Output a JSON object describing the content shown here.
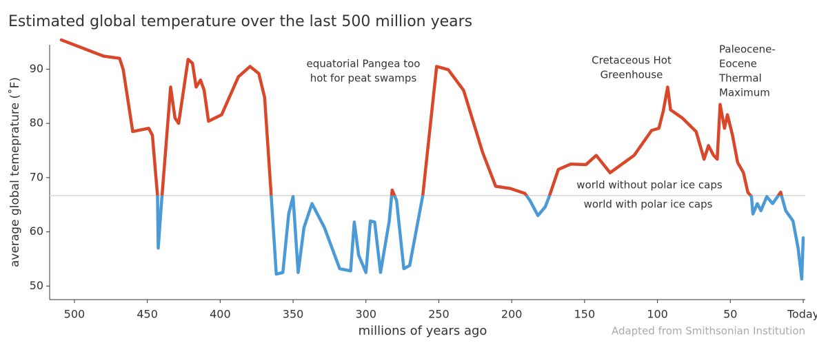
{
  "chart_data": {
    "type": "line",
    "title": "Estimated global temperature over the last 500 million years",
    "x_label": "millions of years ago",
    "y_label": "average global temeprature (˚F)",
    "source": "Adapted from Smithsonian Institution",
    "xlim": [
      517,
      0
    ],
    "ylim": [
      47.5,
      94.5
    ],
    "xticks": [
      500,
      450,
      400,
      350,
      300,
      250,
      200,
      150,
      100,
      50,
      {
        "value": 0,
        "label": "Today"
      }
    ],
    "yticks": [
      50,
      60,
      70,
      80,
      90
    ],
    "threshold": 66.7,
    "colors": {
      "above": "#d9472b",
      "below": "#4a9ad8",
      "threshold": "#d6d6d6"
    },
    "annotations": [
      {
        "lines": [
          "equatorial Pangea too",
          "hot for peat swamps"
        ]
      },
      {
        "lines": [
          "Cretaceous Hot",
          "Greenhouse"
        ]
      },
      {
        "lines": [
          "Paleocene-",
          "Eocene",
          "Thermal",
          "Maximum"
        ]
      },
      {
        "lines": [
          "world without polar ice caps"
        ]
      },
      {
        "lines": [
          "world with polar ice caps"
        ]
      }
    ],
    "series": [
      {
        "name": "temperature",
        "x": [
          509,
          480,
          469,
          466.5,
          460,
          449,
          446.5,
          443,
          442.5,
          440.5,
          434,
          431,
          428.5,
          422,
          419,
          416.5,
          413.5,
          411,
          408,
          399,
          387.5,
          379.5,
          373.5,
          369.5,
          365,
          361.5,
          357,
          353,
          350,
          346.5,
          342.5,
          337,
          328.5,
          318,
          310.5,
          308,
          305,
          300,
          297,
          294,
          290,
          284,
          282,
          279,
          274,
          270,
          261,
          251.5,
          243.5,
          233,
          220,
          211,
          201,
          191,
          187.5,
          182,
          177,
          174,
          168,
          159.5,
          149,
          142,
          132.5,
          116,
          104,
          99,
          96,
          93,
          91,
          83,
          73.5,
          68,
          65,
          61.5,
          59,
          57,
          54,
          52,
          48.5,
          45,
          41,
          38,
          35.5,
          34.5,
          31.5,
          29,
          25,
          21,
          15.5,
          12,
          7,
          3.5,
          1,
          0
        ],
        "values": [
          95.4,
          92.4,
          92.0,
          89.9,
          78.5,
          79.1,
          77.8,
          66.7,
          57.0,
          64.6,
          86.7,
          81.0,
          80.0,
          91.8,
          91.1,
          86.7,
          88.0,
          86.1,
          80.4,
          81.6,
          88.6,
          90.5,
          89.2,
          84.8,
          66.7,
          52.2,
          52.5,
          63.3,
          66.5,
          52.5,
          60.8,
          65.2,
          60.8,
          53.2,
          52.8,
          61.8,
          55.7,
          52.5,
          62.0,
          61.8,
          52.5,
          62.0,
          67.7,
          65.8,
          53.2,
          53.8,
          66.7,
          90.5,
          89.9,
          86.1,
          74.7,
          68.4,
          68.0,
          67.1,
          65.8,
          63.0,
          64.6,
          66.7,
          71.5,
          72.5,
          72.4,
          74.1,
          70.9,
          74.1,
          78.7,
          79.1,
          82.3,
          86.7,
          82.5,
          81.0,
          78.5,
          73.4,
          75.9,
          74.1,
          73.4,
          83.5,
          79.1,
          81.6,
          77.8,
          72.8,
          70.9,
          67.3,
          66.5,
          63.3,
          65.2,
          63.9,
          66.5,
          65.2,
          67.3,
          63.9,
          62.0,
          57.0,
          51.3,
          58.9
        ]
      }
    ]
  }
}
